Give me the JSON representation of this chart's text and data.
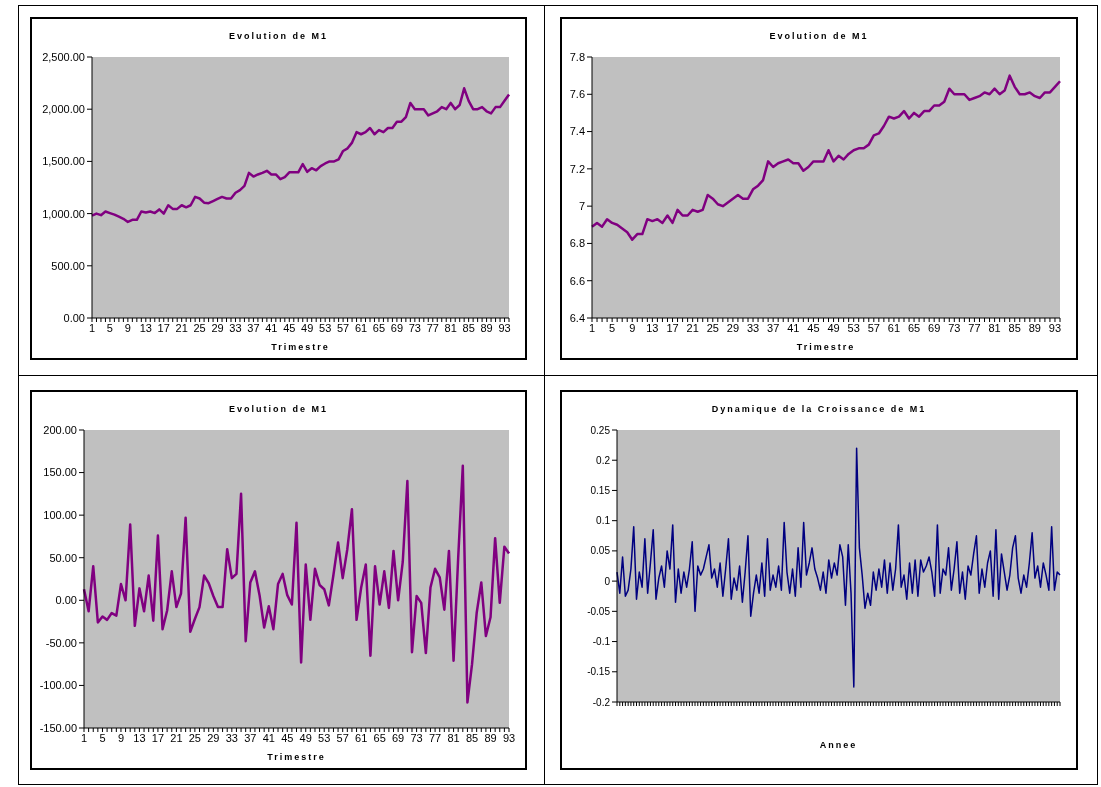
{
  "chart_data": [
    {
      "type": "line",
      "title": "Evolution de M1",
      "xlabel": "Trimestre",
      "color": "#800080",
      "categories": [
        "1",
        null,
        null,
        null,
        "5",
        null,
        null,
        null,
        "9",
        null,
        null,
        null,
        "13",
        null,
        null,
        null,
        "17",
        null,
        null,
        null,
        "21",
        null,
        null,
        null,
        "25",
        null,
        null,
        null,
        "29",
        null,
        null,
        null,
        "33",
        null,
        null,
        null,
        "37",
        null,
        null,
        null,
        "41",
        null,
        null,
        null,
        "45",
        null,
        null,
        null,
        "49",
        null,
        null,
        null,
        "53",
        null,
        null,
        null,
        "57",
        null,
        null,
        null,
        "61",
        null,
        null,
        null,
        "65",
        null,
        null,
        null,
        "69",
        null,
        null,
        null,
        "73",
        null,
        null,
        null,
        "77",
        null,
        null,
        null,
        "81",
        null,
        null,
        null,
        "85",
        null,
        null,
        null,
        "89",
        null,
        null,
        null,
        "93",
        null
      ],
      "values": [
        980,
        1000,
        985,
        1020,
        1005,
        990,
        970,
        950,
        920,
        940,
        940,
        1020,
        1010,
        1020,
        1005,
        1040,
        1000,
        1080,
        1045,
        1045,
        1080,
        1060,
        1080,
        1160,
        1145,
        1105,
        1100,
        1120,
        1140,
        1160,
        1145,
        1145,
        1200,
        1225,
        1265,
        1390,
        1355,
        1375,
        1390,
        1410,
        1375,
        1375,
        1330,
        1350,
        1395,
        1395,
        1395,
        1475,
        1400,
        1435,
        1415,
        1455,
        1480,
        1500,
        1500,
        1520,
        1600,
        1625,
        1680,
        1780,
        1760,
        1780,
        1820,
        1760,
        1800,
        1780,
        1820,
        1820,
        1880,
        1880,
        1925,
        2060,
        2000,
        2000,
        2000,
        1940,
        1960,
        1980,
        2020,
        2000,
        2060,
        2000,
        2040,
        2200,
        2080,
        2000,
        2000,
        2020,
        1980,
        1960,
        2020,
        2020,
        2080,
        2140
      ],
      "ylim": [
        0,
        2500
      ],
      "yticks": [
        {
          "value": 0,
          "label": "0.00"
        },
        {
          "value": 500,
          "label": "500.00"
        },
        {
          "value": 1000,
          "label": "1,000.00"
        },
        {
          "value": 1500,
          "label": "1,500.00"
        },
        {
          "value": 2000,
          "label": "2,000.00"
        },
        {
          "value": 2500,
          "label": "2,500.00"
        }
      ]
    },
    {
      "type": "line",
      "title": "Evolution de M1",
      "xlabel": "Trimestre",
      "color": "#800080",
      "categories": [
        "1",
        null,
        null,
        null,
        "5",
        null,
        null,
        null,
        "9",
        null,
        null,
        null,
        "13",
        null,
        null,
        null,
        "17",
        null,
        null,
        null,
        "21",
        null,
        null,
        null,
        "25",
        null,
        null,
        null,
        "29",
        null,
        null,
        null,
        "33",
        null,
        null,
        null,
        "37",
        null,
        null,
        null,
        "41",
        null,
        null,
        null,
        "45",
        null,
        null,
        null,
        "49",
        null,
        null,
        null,
        "53",
        null,
        null,
        null,
        "57",
        null,
        null,
        null,
        "61",
        null,
        null,
        null,
        "65",
        null,
        null,
        null,
        "69",
        null,
        null,
        null,
        "73",
        null,
        null,
        null,
        "77",
        null,
        null,
        null,
        "81",
        null,
        null,
        null,
        "85",
        null,
        null,
        null,
        "89",
        null,
        null,
        null,
        "93",
        null
      ],
      "values": [
        6.89,
        6.91,
        6.89,
        6.93,
        6.91,
        6.9,
        6.88,
        6.86,
        6.82,
        6.85,
        6.85,
        6.93,
        6.92,
        6.93,
        6.91,
        6.95,
        6.91,
        6.98,
        6.95,
        6.95,
        6.98,
        6.97,
        6.98,
        7.06,
        7.04,
        7.01,
        7.0,
        7.02,
        7.04,
        7.06,
        7.04,
        7.04,
        7.09,
        7.11,
        7.14,
        7.24,
        7.21,
        7.23,
        7.24,
        7.25,
        7.23,
        7.23,
        7.19,
        7.21,
        7.24,
        7.24,
        7.24,
        7.3,
        7.24,
        7.27,
        7.25,
        7.28,
        7.3,
        7.31,
        7.31,
        7.33,
        7.38,
        7.39,
        7.43,
        7.48,
        7.47,
        7.48,
        7.51,
        7.47,
        7.5,
        7.48,
        7.51,
        7.51,
        7.54,
        7.54,
        7.56,
        7.63,
        7.6,
        7.6,
        7.6,
        7.57,
        7.58,
        7.59,
        7.61,
        7.6,
        7.63,
        7.6,
        7.62,
        7.7,
        7.64,
        7.6,
        7.6,
        7.61,
        7.59,
        7.58,
        7.61,
        7.61,
        7.64,
        7.67
      ],
      "ylim": [
        6.4,
        7.8
      ],
      "yticks": [
        6.4,
        6.6,
        6.8,
        7,
        7.2,
        7.4,
        7.6,
        7.8
      ]
    },
    {
      "type": "line",
      "title": "Evolution de M1",
      "xlabel": "Trimestre",
      "color": "#800080",
      "categories": [
        "1",
        null,
        null,
        null,
        "5",
        null,
        null,
        null,
        "9",
        null,
        null,
        null,
        "13",
        null,
        null,
        null,
        "17",
        null,
        null,
        null,
        "21",
        null,
        null,
        null,
        "25",
        null,
        null,
        null,
        "29",
        null,
        null,
        null,
        "33",
        null,
        null,
        null,
        "37",
        null,
        null,
        null,
        "41",
        null,
        null,
        null,
        "45",
        null,
        null,
        null,
        "49",
        null,
        null,
        null,
        "53",
        null,
        null,
        null,
        "57",
        null,
        null,
        null,
        "61",
        null,
        null,
        null,
        "65",
        null,
        null,
        null,
        "69",
        null,
        null,
        null,
        "73",
        null,
        null,
        null,
        "77",
        null,
        null,
        null,
        "81",
        null,
        null,
        null,
        "85",
        null,
        null,
        null,
        "89",
        null,
        null,
        null,
        "93"
      ],
      "values": [
        13,
        -13,
        40,
        -26,
        -19,
        -23,
        -15,
        -18,
        19,
        0,
        89,
        -30,
        14,
        -13,
        29,
        -24,
        76,
        -34,
        -12,
        34,
        -8,
        8,
        97,
        -37,
        -22,
        -8,
        29,
        20,
        5,
        -8,
        -8,
        60,
        26,
        31,
        125,
        -48,
        21,
        34,
        6,
        -32,
        -7,
        -34,
        19,
        31,
        6,
        -5,
        91,
        -73,
        42,
        -23,
        37,
        18,
        13,
        -6,
        30,
        68,
        26,
        60,
        107,
        -23,
        15,
        42,
        -65,
        40,
        -5,
        34,
        -9,
        58,
        0,
        45,
        140,
        -61,
        5,
        -3,
        -62,
        15,
        37,
        27,
        -11,
        58,
        -71,
        50,
        158,
        -120,
        -75,
        -15,
        21,
        -42,
        -20,
        73,
        -3,
        63,
        55
      ],
      "ylim": [
        -150,
        200
      ],
      "yticks": [
        {
          "value": -150,
          "label": "-150.00"
        },
        {
          "value": -100,
          "label": "-100.00"
        },
        {
          "value": -50,
          "label": "-50.00"
        },
        {
          "value": 0,
          "label": "0.00"
        },
        {
          "value": 50,
          "label": "50.00"
        },
        {
          "value": 100,
          "label": "100.00"
        },
        {
          "value": 150,
          "label": "150.00"
        },
        {
          "value": 200,
          "label": "200.00"
        }
      ]
    },
    {
      "type": "line",
      "title": "Dynamique de la Croissance de M1",
      "xlabel": "Annee",
      "color": "#000080",
      "tick_labels": "y",
      "categories": [
        null,
        null,
        null,
        null,
        null,
        null,
        null,
        null,
        null,
        null,
        null,
        null,
        null,
        null,
        null,
        null,
        null,
        null,
        null,
        null,
        null,
        null,
        null,
        null,
        null,
        null,
        null,
        null,
        null,
        null,
        null,
        null,
        null,
        null,
        null,
        null,
        null,
        null,
        null,
        null,
        null,
        null,
        null,
        null,
        null,
        null,
        null,
        null,
        null,
        null,
        null,
        null,
        null,
        null,
        null,
        null,
        null,
        null,
        null,
        null,
        null,
        null,
        null,
        null,
        null,
        null,
        null,
        null,
        null,
        null,
        null,
        null,
        null,
        null,
        null,
        null,
        null,
        null,
        null,
        null,
        null,
        null,
        null,
        null,
        null,
        null,
        null,
        null,
        null,
        null,
        null,
        null,
        null,
        null,
        null,
        null,
        null,
        null,
        null,
        null,
        null,
        null,
        null,
        null,
        null,
        null,
        null,
        null,
        null,
        null,
        null,
        null,
        null,
        null,
        null,
        null,
        null,
        null,
        null,
        null,
        null,
        null,
        null,
        null,
        null,
        null,
        null,
        null,
        null,
        null,
        null,
        null,
        null,
        null,
        null,
        null,
        null,
        null,
        null,
        null,
        null,
        null,
        null,
        null,
        null,
        null,
        null,
        null,
        null,
        null,
        null,
        null,
        null,
        null,
        null,
        null,
        null,
        null,
        null,
        null
      ],
      "values": [
        0.015,
        -0.02,
        0.04,
        -0.025,
        -0.015,
        0.02,
        0.09,
        -0.03,
        0.015,
        -0.01,
        0.07,
        -0.02,
        0.03,
        0.085,
        -0.03,
        0.005,
        0.025,
        -0.01,
        0.05,
        0.02,
        0.093,
        -0.035,
        0.02,
        -0.02,
        0.015,
        -0.01,
        0.02,
        0.065,
        -0.05,
        0.025,
        0.01,
        0.02,
        0.04,
        0.06,
        0.005,
        0.02,
        -0.01,
        0.03,
        -0.025,
        0.02,
        0.07,
        -0.03,
        0.005,
        -0.015,
        0.025,
        -0.035,
        0.015,
        0.075,
        -0.058,
        -0.02,
        0.01,
        -0.02,
        0.03,
        -0.025,
        0.07,
        -0.015,
        0.01,
        -0.01,
        0.025,
        -0.015,
        0.097,
        0.015,
        -0.02,
        0.02,
        -0.025,
        0.055,
        -0.01,
        0.097,
        0.01,
        0.03,
        0.055,
        0.02,
        0.005,
        -0.015,
        0.015,
        -0.02,
        0.035,
        0.005,
        0.03,
        0.01,
        0.06,
        0.04,
        -0.04,
        0.06,
        -0.02,
        -0.175,
        0.22,
        0.055,
        0.01,
        -0.045,
        -0.02,
        -0.04,
        0.015,
        -0.015,
        0.02,
        -0.01,
        0.035,
        -0.02,
        0.03,
        -0.015,
        0.02,
        0.093,
        -0.01,
        0.01,
        -0.03,
        0.03,
        -0.02,
        0.035,
        -0.025,
        0.035,
        0.015,
        0.025,
        0.04,
        0.015,
        -0.025,
        0.093,
        -0.02,
        0.02,
        0.01,
        0.055,
        -0.015,
        0.02,
        0.065,
        -0.02,
        0.015,
        -0.03,
        0.025,
        0.01,
        0.045,
        0.075,
        -0.02,
        0.02,
        -0.01,
        0.03,
        0.05,
        -0.025,
        0.085,
        -0.03,
        0.045,
        0.015,
        -0.015,
        0.01,
        0.055,
        0.075,
        0.005,
        -0.02,
        0.01,
        -0.01,
        0.03,
        0.08,
        0.005,
        0.025,
        -0.01,
        0.03,
        0.01,
        -0.015,
        0.09,
        -0.015,
        0.015,
        0.01
      ],
      "ylim": [
        -0.2,
        0.25
      ],
      "yticks": [
        -0.2,
        -0.15,
        -0.1,
        -0.05,
        0,
        0.05,
        0.1,
        0.15,
        0.2,
        0.25
      ]
    }
  ]
}
